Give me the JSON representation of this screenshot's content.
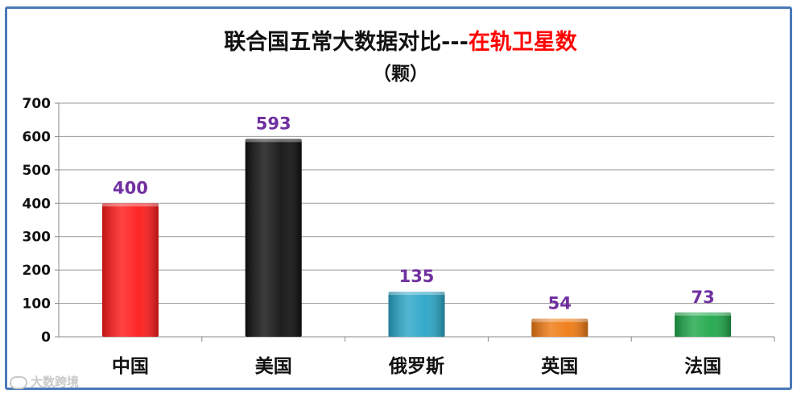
{
  "chart_data": {
    "type": "bar",
    "title_main": "联合国五常大数据对比---",
    "title_highlight": "在轨卫星数",
    "subtitle": "（颗）",
    "categories": [
      "中国",
      "美国",
      "俄罗斯",
      "英国",
      "法国"
    ],
    "values": [
      400,
      593,
      135,
      54,
      73
    ],
    "bar_colors": [
      "#ff1a1a",
      "#111111",
      "#2aa6c8",
      "#ef7a12",
      "#1fa84a"
    ],
    "data_label_color": "#7030a0",
    "ylim": [
      0,
      700
    ],
    "yticks": [
      "0",
      "100",
      "200",
      "300",
      "400",
      "500",
      "600",
      "700"
    ],
    "grid": true,
    "legend": "none"
  },
  "watermark": {
    "text": "大数跨境"
  }
}
